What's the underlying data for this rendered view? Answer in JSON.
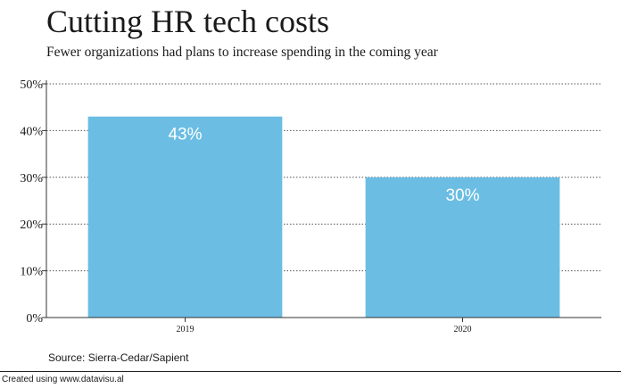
{
  "chart_data": {
    "type": "bar",
    "title": "Cutting HR tech costs",
    "subtitle": "Fewer organizations had plans to increase spending in the coming year",
    "categories": [
      "2019",
      "2020"
    ],
    "values": [
      43,
      30
    ],
    "value_labels": [
      "43%",
      "30%"
    ],
    "xlabel": "",
    "ylabel": "",
    "ylim": [
      0,
      50
    ],
    "yticks": [
      0,
      10,
      20,
      30,
      40,
      50
    ],
    "ytick_labels": [
      "0%",
      "10%",
      "20%",
      "30%",
      "40%",
      "50%"
    ],
    "grid": true,
    "bar_color": "#6bbde3",
    "data_label_color": "#ffffff",
    "grid_color": "#555555",
    "source": "Source: Sierra-Cedar/Sapient"
  },
  "credit": "Created using www.datavisu.al"
}
